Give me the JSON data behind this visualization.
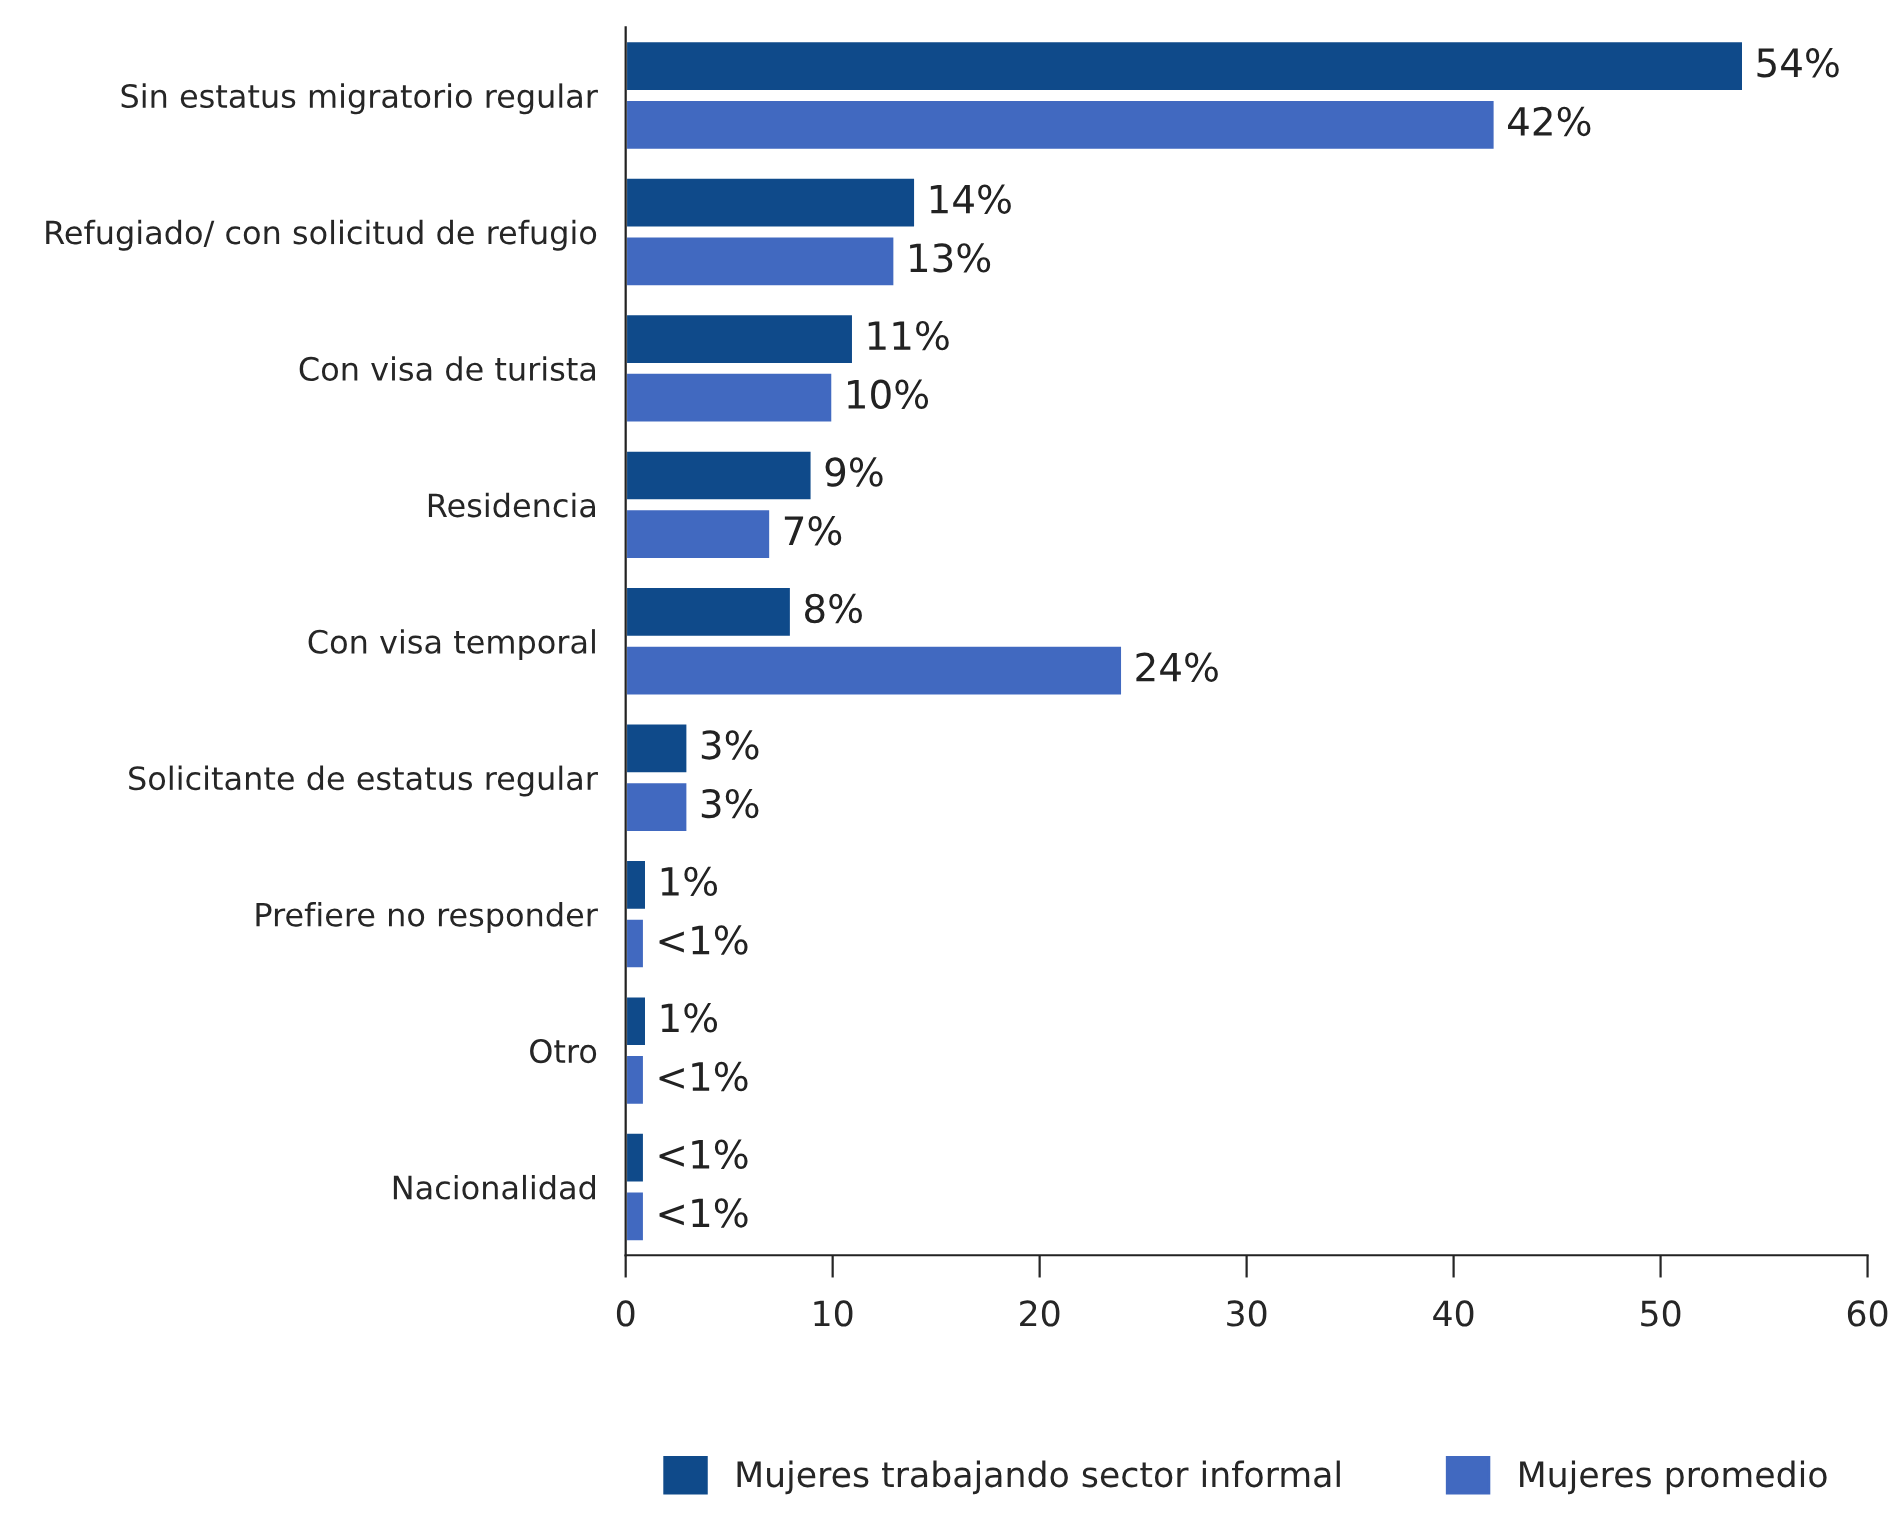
{
  "chart_data": {
    "type": "bar",
    "orientation": "horizontal",
    "categories": [
      "Sin estatus migratorio regular",
      "Refugiado/ con solicitud de refugio",
      "Con visa de turista",
      "Residencia",
      "Con visa temporal",
      "Solicitante de estatus regular",
      "Prefiere no responder",
      "Otro",
      "Nacionalidad"
    ],
    "series": [
      {
        "name": "Mujeres trabajando sector informal",
        "color": "#0f4a8a",
        "values": [
          54,
          14,
          11,
          9,
          8,
          3,
          1,
          1,
          0.9
        ],
        "value_labels": [
          "54%",
          "14%",
          "11%",
          "9%",
          "8%",
          "3%",
          "1%",
          "1%",
          "<1%"
        ]
      },
      {
        "name": "Mujeres promedio",
        "color": "#4169c0",
        "values": [
          42,
          13,
          10,
          7,
          24,
          3,
          0.9,
          0.9,
          0.9
        ],
        "value_labels": [
          "42%",
          "13%",
          "10%",
          "7%",
          "24%",
          "3%",
          "<1%",
          "<1%",
          "<1%"
        ]
      }
    ],
    "xlim": [
      0,
      60
    ],
    "xticks": [
      0,
      10,
      20,
      30,
      40,
      50,
      60
    ],
    "grid": false,
    "legend": "bottom"
  }
}
